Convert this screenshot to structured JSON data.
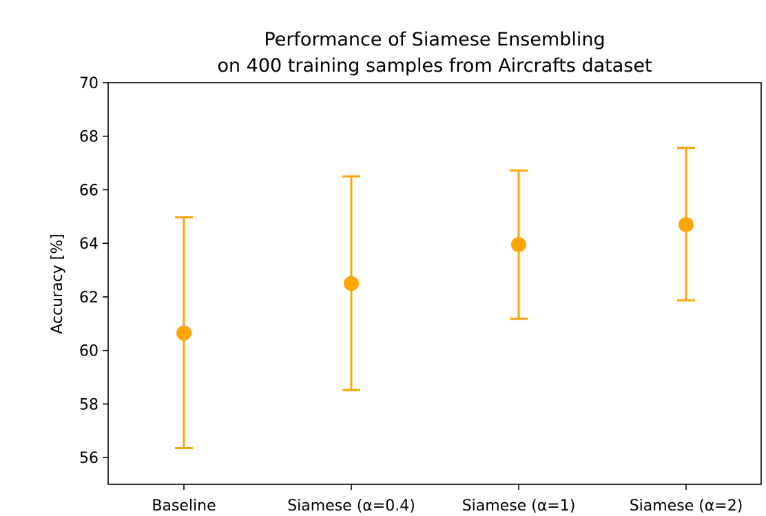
{
  "chart_data": {
    "type": "scatter",
    "title_lines": [
      "Performance of Siamese Ensembling",
      "on 400 training samples from Aircrafts dataset"
    ],
    "xlabel": "",
    "ylabel": "Accuracy [%]",
    "categories": [
      "Baseline",
      "Siamese (α=0.4)",
      "Siamese (α=1)",
      "Siamese (α=2)"
    ],
    "series": [
      {
        "values": [
          60.65,
          62.5,
          63.95,
          64.7
        ],
        "error_low": [
          56.35,
          58.52,
          61.18,
          61.87
        ],
        "error_high": [
          64.97,
          66.5,
          66.72,
          67.57
        ]
      }
    ],
    "ylim": [
      55,
      70
    ],
    "yticks": [
      "56",
      "58",
      "60",
      "62",
      "64",
      "66",
      "68",
      "70"
    ],
    "grid": false,
    "color": "#FFA500"
  }
}
